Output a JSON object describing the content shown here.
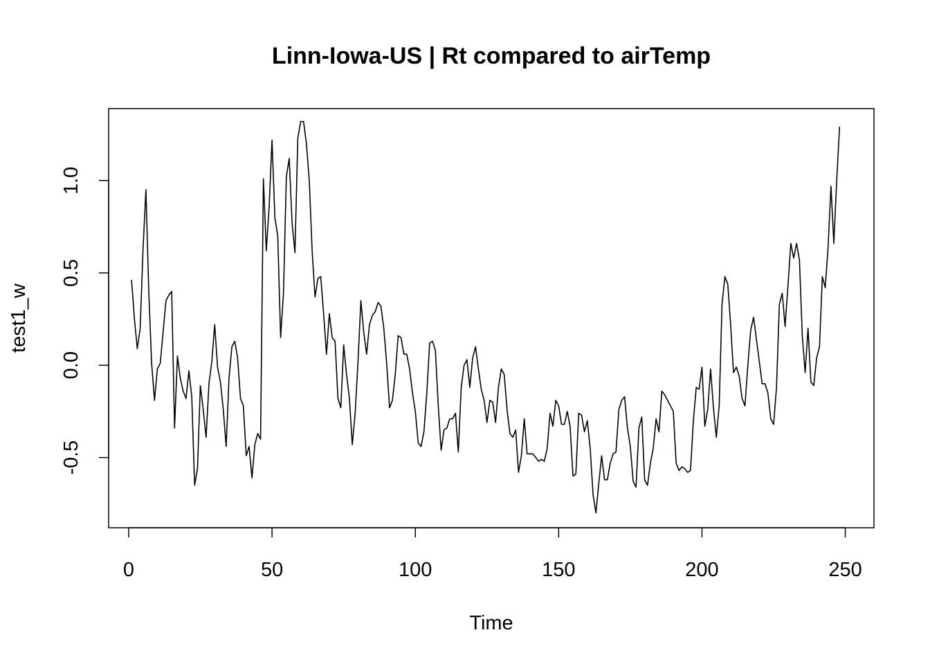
{
  "chart_data": {
    "type": "line",
    "title": "Linn-Iowa-US | Rt compared to airTemp",
    "xlabel": "Time",
    "ylabel": "test1_w",
    "xlim": [
      -7,
      260
    ],
    "ylim": [
      -0.88,
      1.39
    ],
    "x_ticks": [
      0,
      50,
      100,
      150,
      200,
      250
    ],
    "x_tick_labels": [
      "0",
      "50",
      "100",
      "150",
      "200",
      "250"
    ],
    "y_ticks": [
      -0.5,
      0.0,
      0.5,
      1.0
    ],
    "y_tick_labels": [
      "-0.5",
      "0.0",
      "0.5",
      "1.0"
    ],
    "grid": false,
    "legend": "none",
    "color": "#000000",
    "x_start": 1,
    "x_step": 1,
    "y": [
      0.46,
      0.25,
      0.09,
      0.2,
      0.63,
      0.95,
      0.4,
      0.01,
      -0.19,
      -0.02,
      0.01,
      0.18,
      0.35,
      0.38,
      0.4,
      -0.34,
      0.05,
      -0.07,
      -0.14,
      -0.18,
      -0.03,
      -0.17,
      -0.65,
      -0.56,
      -0.11,
      -0.24,
      -0.39,
      -0.1,
      0.02,
      0.22,
      -0.01,
      -0.09,
      -0.24,
      -0.44,
      -0.07,
      0.1,
      0.13,
      0.04,
      -0.18,
      -0.22,
      -0.49,
      -0.44,
      -0.61,
      -0.43,
      -0.37,
      -0.4,
      1.01,
      0.62,
      0.86,
      1.22,
      0.8,
      0.7,
      0.15,
      0.39,
      1.02,
      1.12,
      0.77,
      0.61,
      1.23,
      1.32,
      1.32,
      1.2,
      1.0,
      0.62,
      0.37,
      0.47,
      0.48,
      0.28,
      0.06,
      0.28,
      0.15,
      0.13,
      -0.18,
      -0.23,
      0.11,
      -0.05,
      -0.18,
      -0.43,
      -0.26,
      0.02,
      0.35,
      0.18,
      0.06,
      0.22,
      0.27,
      0.29,
      0.34,
      0.32,
      0.2,
      0.01,
      -0.23,
      -0.19,
      -0.05,
      0.16,
      0.15,
      0.06,
      0.06,
      -0.02,
      -0.15,
      -0.25,
      -0.42,
      -0.44,
      -0.36,
      -0.15,
      0.12,
      0.13,
      0.08,
      -0.22,
      -0.46,
      -0.35,
      -0.34,
      -0.29,
      -0.29,
      -0.26,
      -0.47,
      -0.12,
      0.0,
      0.03,
      -0.12,
      0.04,
      0.1,
      -0.02,
      -0.13,
      -0.19,
      -0.31,
      -0.19,
      -0.2,
      -0.31,
      -0.12,
      -0.02,
      -0.05,
      -0.24,
      -0.37,
      -0.39,
      -0.35,
      -0.58,
      -0.49,
      -0.29,
      -0.48,
      -0.48,
      -0.48,
      -0.5,
      -0.52,
      -0.51,
      -0.52,
      -0.45,
      -0.26,
      -0.33,
      -0.19,
      -0.22,
      -0.32,
      -0.32,
      -0.25,
      -0.33,
      -0.6,
      -0.59,
      -0.26,
      -0.27,
      -0.36,
      -0.3,
      -0.45,
      -0.7,
      -0.8,
      -0.64,
      -0.49,
      -0.62,
      -0.62,
      -0.53,
      -0.48,
      -0.47,
      -0.24,
      -0.19,
      -0.17,
      -0.34,
      -0.44,
      -0.63,
      -0.66,
      -0.34,
      -0.28,
      -0.62,
      -0.65,
      -0.53,
      -0.45,
      -0.29,
      -0.36,
      -0.14,
      -0.16,
      -0.19,
      -0.22,
      -0.25,
      -0.53,
      -0.57,
      -0.55,
      -0.56,
      -0.58,
      -0.57,
      -0.3,
      -0.12,
      -0.13,
      -0.01,
      -0.33,
      -0.24,
      -0.02,
      -0.23,
      -0.39,
      -0.22,
      0.33,
      0.48,
      0.44,
      0.22,
      -0.04,
      -0.01,
      -0.06,
      -0.18,
      -0.22,
      0.0,
      0.19,
      0.26,
      0.14,
      0.02,
      -0.1,
      -0.1,
      -0.15,
      -0.29,
      -0.32,
      -0.12,
      0.33,
      0.39,
      0.21,
      0.43,
      0.66,
      0.58,
      0.66,
      0.57,
      0.16,
      -0.04,
      0.2,
      -0.09,
      -0.11,
      0.04,
      0.1,
      0.48,
      0.42,
      0.64,
      0.97,
      0.66,
      1.0,
      1.29
    ]
  }
}
